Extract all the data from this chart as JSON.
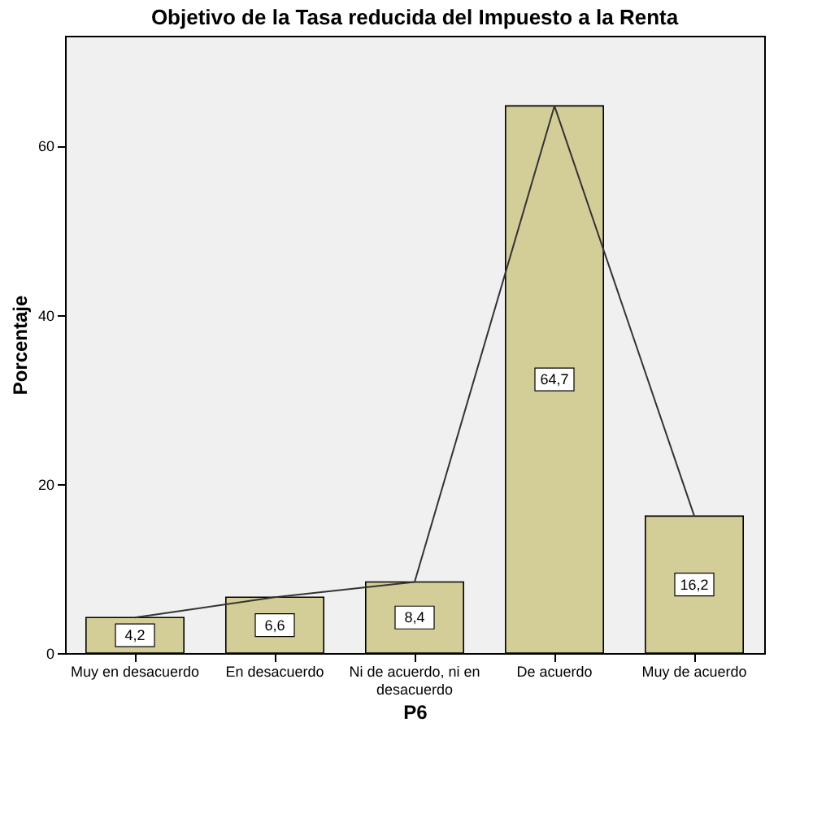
{
  "chart_data": {
    "type": "bar",
    "title": "Objetivo de la Tasa reducida del Impuesto a la Renta",
    "xlabel": "P6",
    "ylabel": "Porcentaje",
    "categories": [
      "Muy en desacuerdo",
      "En desacuerdo",
      "Ni de acuerdo, ni en desacuerdo",
      "De acuerdo",
      "Muy de acuerdo"
    ],
    "series": [
      {
        "color": "#d3ce97",
        "values": [
          4.2,
          6.6,
          8.4,
          64.7,
          16.2
        ],
        "value_labels": [
          "4,2",
          "6,6",
          "8,4",
          "64,7",
          "16,2"
        ]
      },
      {
        "type": "line",
        "color": "#333333",
        "values": [
          4.2,
          6.6,
          8.4,
          64.7,
          16.2
        ]
      }
    ],
    "ylim": [
      0,
      73
    ],
    "yticks": [
      0,
      20,
      40,
      60
    ],
    "grid": false,
    "marker": "none",
    "line_style": "solid"
  }
}
